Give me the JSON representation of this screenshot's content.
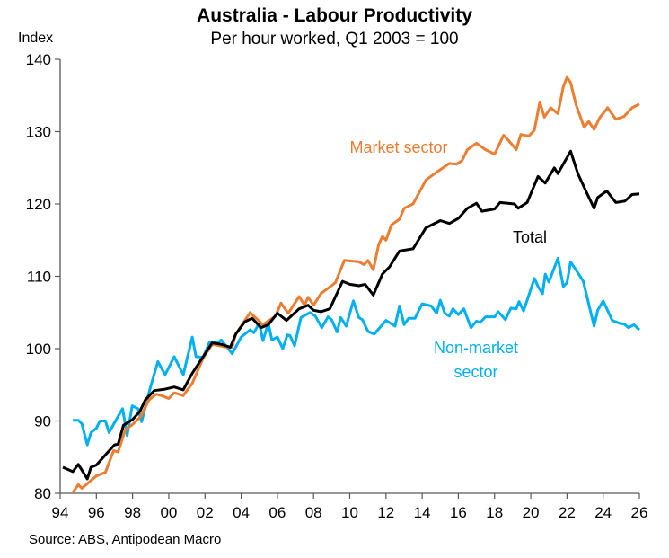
{
  "chart_data": {
    "type": "line",
    "title": "Australia - Labour Productivity",
    "subtitle": "Per hour worked, Q1 2003 = 100",
    "ylabel": "Index",
    "xlabel": "",
    "source": "Source: ABS, Antipodean Macro",
    "xlim": [
      1994,
      2026
    ],
    "ylim": [
      80,
      140
    ],
    "yticks": [
      80,
      90,
      100,
      110,
      120,
      130,
      140
    ],
    "xticks": [
      1994,
      1996,
      1998,
      2000,
      2002,
      2004,
      2006,
      2008,
      2010,
      2012,
      2014,
      2016,
      2018,
      2020,
      2022,
      2024,
      2026
    ],
    "xtick_labels": [
      "94",
      "96",
      "98",
      "00",
      "02",
      "04",
      "06",
      "08",
      "10",
      "12",
      "14",
      "16",
      "18",
      "20",
      "22",
      "24",
      "26"
    ],
    "grid": false,
    "legend": "inline labels",
    "series": [
      {
        "name": "Market sector",
        "label_lines": [
          "Market sector"
        ],
        "color": "#ED7D31",
        "x": [
          1994.7,
          1995.0,
          1995.2,
          1996.0,
          1996.5,
          1996.95,
          1997.2,
          1997.6,
          1997.95,
          1998.45,
          1998.9,
          1999.3,
          1999.6,
          2000.0,
          2000.3,
          2000.8,
          2001.3,
          2001.9,
          2002.4,
          2003.2,
          2003.5,
          2003.7,
          2004.5,
          2005.2,
          2005.9,
          2006.2,
          2006.6,
          2007.2,
          2007.5,
          2007.7,
          2008.0,
          2008.4,
          2009.2,
          2009.7,
          2010.5,
          2010.8,
          2011.0,
          2011.3,
          2011.6,
          2011.8,
          2012.0,
          2012.3,
          2012.75,
          2013.0,
          2013.5,
          2014.2,
          2014.8,
          2015.5,
          2015.9,
          2016.2,
          2016.5,
          2017.0,
          2017.5,
          2018.0,
          2018.5,
          2018.8,
          2019.2,
          2019.45,
          2019.9,
          2020.2,
          2020.5,
          2020.75,
          2021.1,
          2021.5,
          2021.8,
          2022.0,
          2022.2,
          2022.5,
          2022.95,
          2023.2,
          2023.5,
          2023.8,
          2024.25,
          2024.7,
          2025.15,
          2025.6,
          2026.0
        ],
        "y": [
          80.1,
          81.2,
          80.7,
          82.4,
          82.9,
          85.9,
          85.7,
          88.8,
          89.4,
          90.6,
          92.9,
          93.7,
          93.5,
          93.1,
          93.9,
          93.5,
          95.2,
          98.7,
          100.6,
          100.2,
          100.2,
          102.0,
          105.0,
          103.3,
          104.5,
          106.3,
          104.9,
          107.2,
          106.0,
          107.1,
          106.0,
          107.6,
          109.1,
          112.2,
          112.0,
          111.6,
          112.2,
          110.9,
          114.4,
          115.5,
          115.0,
          117.1,
          117.9,
          119.4,
          120.0,
          123.3,
          124.4,
          125.6,
          125.5,
          126.0,
          127.5,
          128.4,
          127.5,
          126.9,
          129.5,
          128.7,
          127.5,
          129.6,
          129.4,
          130.2,
          134.1,
          132.0,
          133.3,
          132.5,
          136.2,
          137.5,
          136.8,
          133.7,
          130.6,
          131.4,
          130.3,
          131.9,
          133.3,
          131.7,
          132.1,
          133.3,
          133.8
        ]
      },
      {
        "name": "Total",
        "label_lines": [
          "Total"
        ],
        "color": "#000000",
        "x": [
          1994.15,
          1994.7,
          1995.0,
          1995.5,
          1995.7,
          1996.0,
          1996.5,
          1997.0,
          1997.2,
          1997.5,
          1998.0,
          1998.4,
          1998.7,
          1999.2,
          1999.8,
          2000.3,
          2000.8,
          2001.3,
          2001.8,
          2002.4,
          2002.9,
          2003.4,
          2003.7,
          2004.2,
          2004.6,
          2005.1,
          2005.5,
          2006.0,
          2006.5,
          2007.2,
          2007.7,
          2008.0,
          2008.4,
          2008.9,
          2009.6,
          2010.0,
          2010.5,
          2010.85,
          2011.3,
          2011.8,
          2012.2,
          2012.75,
          2013.5,
          2014.2,
          2015.0,
          2015.5,
          2016.0,
          2016.5,
          2017.0,
          2017.3,
          2018.0,
          2018.3,
          2019.1,
          2019.3,
          2019.8,
          2020.4,
          2020.8,
          2021.3,
          2021.5,
          2022.2,
          2022.6,
          2023.1,
          2023.5,
          2023.7,
          2024.2,
          2024.7,
          2025.2,
          2025.6,
          2026.0
        ],
        "y": [
          83.6,
          83.0,
          84.0,
          82.0,
          83.6,
          83.9,
          85.3,
          86.7,
          86.8,
          89.4,
          90.2,
          91.3,
          92.9,
          94.2,
          94.4,
          94.7,
          94.3,
          96.6,
          98.5,
          100.8,
          100.6,
          100.2,
          102.0,
          103.7,
          104.2,
          102.9,
          103.3,
          104.9,
          103.9,
          105.5,
          106.0,
          105.3,
          105.1,
          105.5,
          109.3,
          108.9,
          108.7,
          108.9,
          107.4,
          110.3,
          111.3,
          113.5,
          113.8,
          116.7,
          117.7,
          117.3,
          118.0,
          119.4,
          120.1,
          119.0,
          119.3,
          120.2,
          120.0,
          119.4,
          120.2,
          123.8,
          122.9,
          125.0,
          124.2,
          127.3,
          124.2,
          121.5,
          119.4,
          120.9,
          121.8,
          120.2,
          120.4,
          121.3,
          121.4
        ]
      },
      {
        "name": "Non-market sector",
        "label_lines": [
          "Non-market",
          "sector"
        ],
        "color": "#00B0F0",
        "x": [
          1994.7,
          1995.0,
          1995.2,
          1995.5,
          1995.7,
          1996.0,
          1996.2,
          1996.5,
          1996.7,
          1997.1,
          1997.45,
          1997.7,
          1997.98,
          1998.3,
          1998.5,
          1999.0,
          1999.4,
          1999.8,
          2000.3,
          2000.8,
          2001.3,
          2001.5,
          2001.9,
          2002.25,
          2002.7,
          2002.9,
          2003.5,
          2004.0,
          2004.5,
          2004.7,
          2005.0,
          2005.2,
          2005.5,
          2005.7,
          2006.0,
          2006.3,
          2006.55,
          2006.7,
          2006.95,
          2007.3,
          2007.8,
          2008.1,
          2008.45,
          2008.8,
          2009.0,
          2009.3,
          2009.5,
          2009.8,
          2010.2,
          2010.5,
          2010.7,
          2011.0,
          2011.35,
          2012.0,
          2012.5,
          2012.75,
          2013.0,
          2013.25,
          2013.6,
          2014.0,
          2014.5,
          2014.8,
          2015.0,
          2015.25,
          2015.5,
          2015.7,
          2016.0,
          2016.3,
          2016.7,
          2017.0,
          2017.2,
          2017.5,
          2018.0,
          2018.2,
          2018.6,
          2018.9,
          2019.2,
          2019.35,
          2019.6,
          2020.2,
          2020.4,
          2020.65,
          2020.8,
          2021.0,
          2021.5,
          2021.8,
          2022.0,
          2022.2,
          2022.7,
          2022.9,
          2023.5,
          2023.7,
          2024.0,
          2024.5,
          2024.9,
          2025.15,
          2025.4,
          2025.7,
          2026.0
        ],
        "y": [
          90.1,
          90.1,
          89.6,
          86.7,
          88.4,
          89.0,
          90.0,
          90.0,
          88.4,
          90.2,
          91.7,
          88.0,
          92.1,
          91.7,
          89.9,
          94.8,
          98.2,
          96.4,
          98.9,
          96.4,
          101.6,
          98.9,
          98.8,
          100.9,
          100.8,
          101.2,
          99.3,
          101.6,
          102.6,
          102.2,
          103.5,
          101.1,
          103.5,
          101.2,
          101.6,
          100.0,
          101.9,
          101.8,
          100.4,
          104.3,
          105.0,
          104.5,
          102.9,
          104.4,
          104.0,
          102.3,
          104.3,
          103.1,
          106.6,
          104.3,
          104.0,
          102.4,
          102.0,
          103.9,
          103.1,
          105.9,
          103.3,
          104.2,
          104.2,
          106.2,
          105.9,
          104.9,
          106.7,
          104.9,
          104.5,
          105.5,
          104.7,
          105.5,
          102.9,
          103.8,
          103.6,
          104.4,
          104.4,
          105.1,
          104.0,
          105.6,
          105.5,
          106.5,
          105.2,
          109.7,
          108.6,
          107.6,
          110.3,
          109.2,
          112.5,
          108.6,
          109.1,
          112.0,
          110.1,
          109.3,
          103.1,
          105.3,
          106.6,
          103.9,
          103.5,
          103.4,
          102.9,
          103.3,
          102.6
        ]
      }
    ]
  }
}
